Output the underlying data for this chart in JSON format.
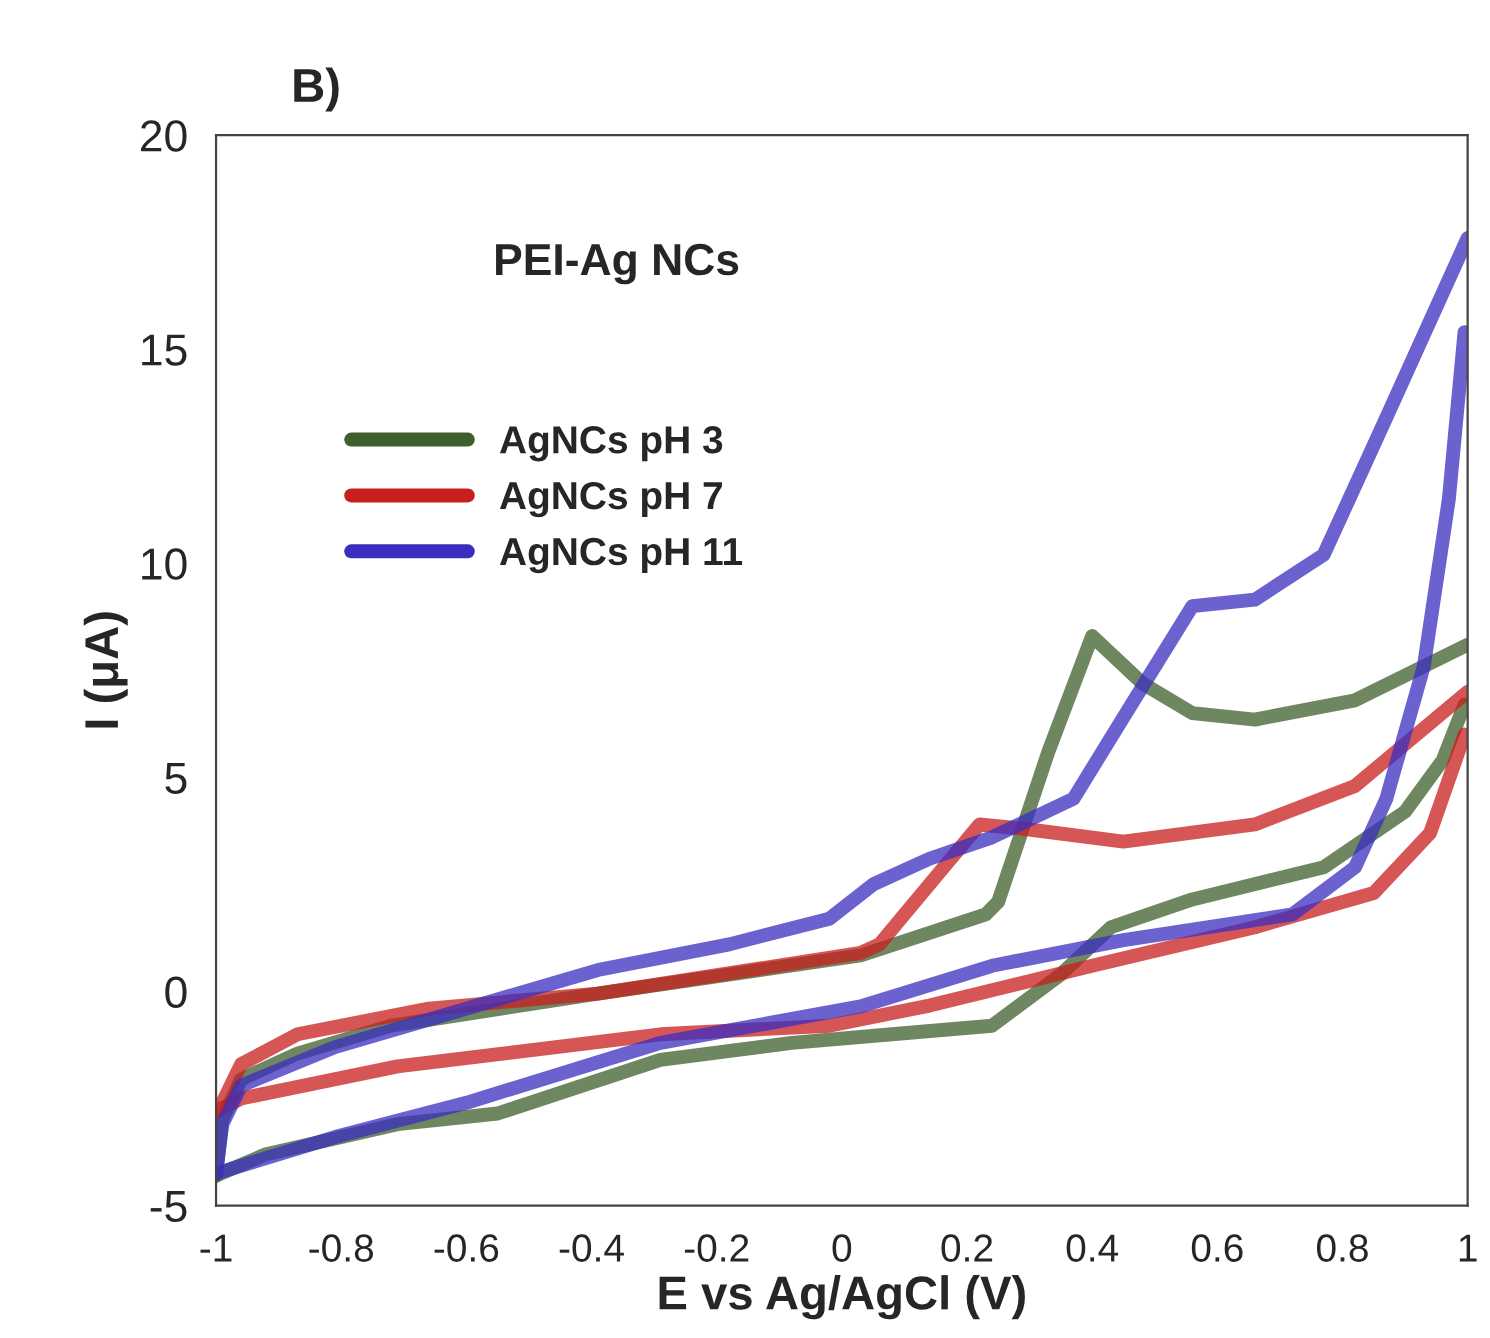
{
  "chart_data": {
    "type": "line",
    "title": "B)",
    "xlabel": "E vs Ag/AgCl (V)",
    "ylabel": "I (μA)",
    "annotations": [
      "PEI-Ag NCs"
    ],
    "xlim": [
      -1,
      1
    ],
    "xticks": [
      -1,
      -0.8,
      -0.6,
      -0.4,
      -0.2,
      0,
      0.2,
      0.4,
      0.6,
      0.8,
      1
    ],
    "ylim": [
      -5,
      20
    ],
    "yticks": [
      -5,
      0,
      5,
      10,
      15,
      20
    ],
    "grid": false,
    "legend": "left",
    "marker": "none",
    "line_style": "solid",
    "series": [
      {
        "name": "AgNCs pH 3",
        "color": "#3f5f2c",
        "x": [
          -1,
          -0.99,
          -0.96,
          -0.87,
          -0.72,
          -0.39,
          0.03,
          0.23,
          0.25,
          0.33,
          0.4,
          0.48,
          0.56,
          0.66,
          0.82,
          1
        ],
        "values": [
          -4.3,
          -3.0,
          -2.05,
          -1.45,
          -0.8,
          -0.05,
          0.84,
          1.8,
          2.1,
          5.6,
          8.3,
          7.2,
          6.5,
          6.35,
          6.8,
          8.1
        ]
      },
      {
        "color": "#3f5f2c",
        "x": [
          0.995,
          0.96,
          0.9,
          0.77,
          0.56,
          0.43,
          0.35,
          0.24,
          0.08,
          -0.08,
          -0.29,
          -0.55,
          -0.71,
          -0.92,
          -1
        ],
        "values": [
          6.7,
          5.4,
          4.2,
          2.9,
          2.15,
          1.5,
          0.4,
          -0.8,
          -1.0,
          -1.2,
          -1.6,
          -2.85,
          -3.1,
          -3.8,
          -4.3
        ]
      },
      {
        "name": "AgNCs pH 7",
        "color": "#c81e1e",
        "x": [
          -1,
          -0.99,
          -0.96,
          -0.87,
          -0.66,
          -0.39,
          0.03,
          0.06,
          0.14,
          0.22,
          0.29,
          0.45,
          0.66,
          0.82,
          1
        ],
        "values": [
          -2.8,
          -2.6,
          -1.7,
          -1.0,
          -0.4,
          -0.05,
          0.9,
          1.1,
          2.5,
          3.9,
          3.8,
          3.5,
          3.9,
          4.8,
          7.0
        ]
      },
      {
        "color": "#c81e1e",
        "x": [
          0.995,
          0.94,
          0.85,
          0.66,
          0.4,
          0.14,
          -0.02,
          -0.29,
          -0.71,
          -0.96,
          -1
        ],
        "values": [
          6.0,
          3.7,
          2.3,
          1.5,
          0.6,
          -0.33,
          -0.8,
          -1.0,
          -1.75,
          -2.5,
          -2.8
        ]
      },
      {
        "name": "AgNCs pH 11",
        "color": "#3a2ec0",
        "x": [
          -1,
          -0.99,
          -0.96,
          -0.81,
          -0.6,
          -0.39,
          -0.18,
          -0.02,
          0.05,
          0.14,
          0.24,
          0.37,
          0.45,
          0.56,
          0.66,
          0.77,
          0.87,
          1
        ],
        "values": [
          -4.25,
          -3.1,
          -2.2,
          -1.3,
          -0.4,
          0.5,
          1.1,
          1.7,
          2.5,
          3.1,
          3.6,
          4.5,
          6.4,
          9.0,
          9.15,
          10.2,
          13.4,
          17.6
        ]
      },
      {
        "color": "#3a2ec0",
        "x": [
          0.995,
          0.97,
          0.93,
          0.87,
          0.82,
          0.72,
          0.45,
          0.24,
          0.03,
          -0.29,
          -0.6,
          -0.81,
          -1
        ],
        "values": [
          15.4,
          11.5,
          7.6,
          4.5,
          2.9,
          1.8,
          1.2,
          0.6,
          -0.35,
          -1.2,
          -2.6,
          -3.4,
          -4.25
        ]
      }
    ]
  }
}
